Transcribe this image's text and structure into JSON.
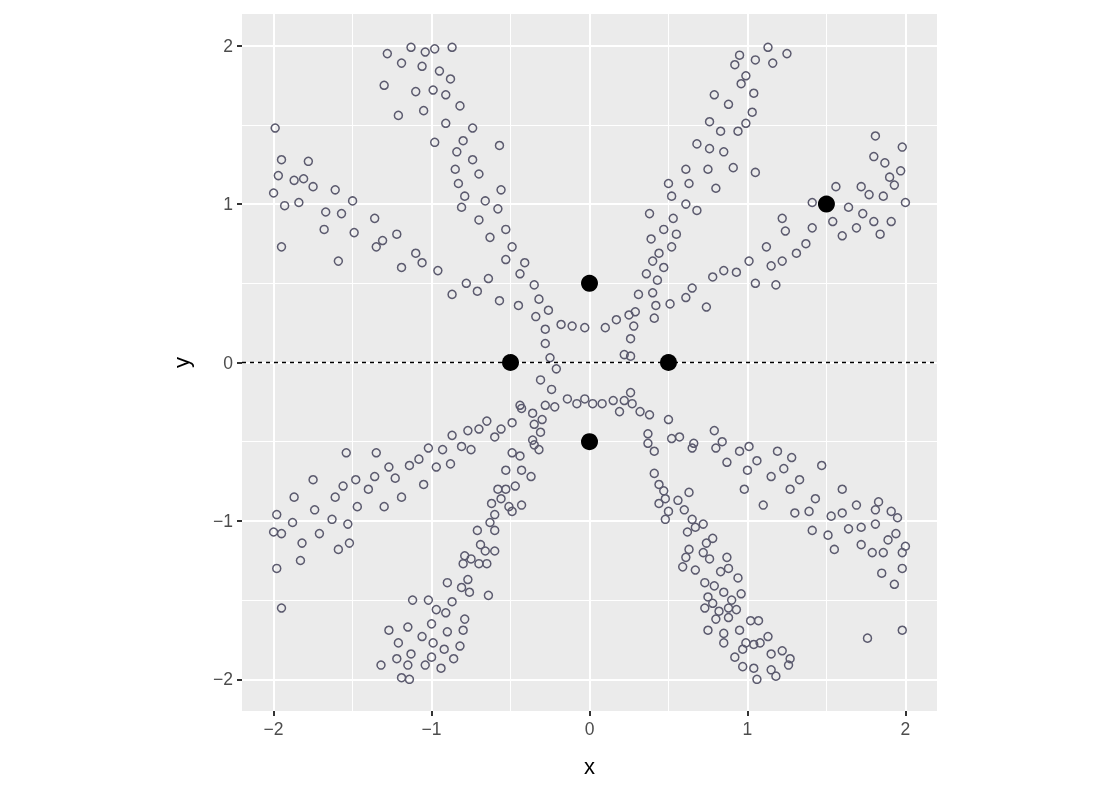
{
  "chart_data": {
    "type": "scatter",
    "xlabel": "x",
    "ylabel": "y",
    "xlim": [
      -2.2,
      2.2
    ],
    "ylim": [
      -2.2,
      2.2
    ],
    "xticks": [
      {
        "value": -2,
        "label": "−2"
      },
      {
        "value": -1,
        "label": "−1"
      },
      0,
      1,
      2
    ],
    "yticks": [
      {
        "value": -2,
        "label": "−2"
      },
      {
        "value": -1,
        "label": "−1"
      },
      0,
      1,
      2
    ],
    "grid": true,
    "marker": "circle",
    "ref_lines": [
      {
        "axis": "y",
        "value": 0,
        "color": "#000000",
        "line_style": "dashed"
      }
    ],
    "series": [
      {
        "color": "#5b5a6e",
        "x": [
          -1.99,
          -1.95,
          -1.78,
          -1.97,
          -2.0,
          -1.93,
          -1.87,
          -1.81,
          -1.75,
          -1.84,
          -1.67,
          -1.61,
          -1.68,
          -1.95,
          -1.57,
          -1.5,
          -1.49,
          -1.59,
          -1.36,
          -1.31,
          -1.35,
          -1.22,
          -1.19,
          -1.1,
          -1.06,
          -0.96,
          -0.87,
          -0.78,
          -0.71,
          -0.64,
          -0.57,
          -0.45,
          -0.34,
          -0.11,
          -0.03,
          -1.13,
          -1.04,
          -0.98,
          -0.87,
          -1.28,
          -1.19,
          -1.06,
          -0.95,
          -0.88,
          -1.3,
          -1.1,
          -0.99,
          -0.91,
          -0.82,
          -1.05,
          -1.21,
          -0.91,
          -0.74,
          -0.98,
          -0.8,
          -0.57,
          -0.84,
          -0.74,
          -0.85,
          -0.7,
          -0.83,
          -0.56,
          -0.79,
          -0.81,
          -0.66,
          -0.58,
          -0.7,
          -0.53,
          -0.63,
          -0.49,
          -0.53,
          -0.41,
          -0.44,
          -0.35,
          -0.32,
          -0.26,
          -0.28,
          -0.28,
          -0.25,
          -0.18,
          1.13,
          1.25,
          0.95,
          1.05,
          1.16,
          0.92,
          0.99,
          0.96,
          1.04,
          0.79,
          0.88,
          1.03,
          0.76,
          0.99,
          0.83,
          0.94,
          0.68,
          0.76,
          0.85,
          0.61,
          0.91,
          1.05,
          0.75,
          0.5,
          0.63,
          0.8,
          0.52,
          0.61,
          0.68,
          0.38,
          0.53,
          0.47,
          0.39,
          0.55,
          0.52,
          0.44,
          0.4,
          0.47,
          0.36,
          0.43,
          0.31,
          0.4,
          0.42,
          0.41,
          0.28,
          0.22,
          0.26,
          0.26,
          0.1,
          0.17,
          0.25,
          0.29,
          0.51,
          0.61,
          0.65,
          0.74,
          0.78,
          0.85,
          0.93,
          1.01,
          1.05,
          1.18,
          1.15,
          1.12,
          1.22,
          1.24,
          1.22,
          1.31,
          1.37,
          1.41,
          1.41,
          1.56,
          1.54,
          1.6,
          1.69,
          1.72,
          1.77,
          1.8,
          1.84,
          1.8,
          1.81,
          1.86,
          1.9,
          1.97,
          1.98,
          2.0,
          1.91,
          1.93,
          1.87,
          1.73,
          1.64,
          -2.0,
          -1.98,
          -1.95,
          -1.98,
          -1.95,
          -1.87,
          -1.82,
          -1.83,
          -1.88,
          -1.75,
          -1.74,
          -1.71,
          -1.61,
          -1.63,
          -1.54,
          -1.59,
          -1.52,
          -1.53,
          -1.47,
          -1.56,
          -1.48,
          -1.35,
          -1.4,
          -1.3,
          -1.36,
          -1.23,
          -1.19,
          -1.27,
          -1.14,
          -1.08,
          -1.05,
          -1.02,
          -0.97,
          -0.88,
          -0.93,
          -0.87,
          -0.81,
          -0.75,
          -0.77,
          -0.7,
          -0.65,
          -0.6,
          -0.56,
          -0.49,
          -0.44,
          -0.36,
          -0.28,
          -0.22,
          -0.14,
          -0.08,
          -0.03,
          -0.31,
          -0.24,
          -0.21,
          -1.19,
          -1.14,
          -1.32,
          -1.22,
          -1.15,
          -1.27,
          -1.21,
          -1.13,
          -1.15,
          -1.12,
          -1.04,
          -1.0,
          -0.94,
          -0.86,
          -1.06,
          -0.99,
          -0.92,
          -0.82,
          -1.02,
          -1.0,
          -0.9,
          -0.97,
          -0.91,
          -0.8,
          -0.79,
          -0.9,
          -0.87,
          -0.81,
          -0.77,
          -0.76,
          -0.64,
          -0.8,
          -0.79,
          -0.75,
          -0.7,
          -0.65,
          -0.66,
          -0.6,
          -0.71,
          -0.69,
          -0.6,
          -0.63,
          -0.6,
          -0.62,
          -0.56,
          -0.51,
          -0.53,
          -0.49,
          -0.43,
          -0.58,
          -0.53,
          -0.47,
          -0.43,
          -0.37,
          -0.49,
          -0.44,
          -0.36,
          -0.35,
          -0.32,
          -0.31,
          -0.43,
          -0.35,
          -0.3,
          0.02,
          0.08,
          0.15,
          0.22,
          0.26,
          0.19,
          0.27,
          0.32,
          0.38,
          0.5,
          0.52,
          0.57,
          0.66,
          0.65,
          0.79,
          0.8,
          0.84,
          0.87,
          0.95,
          1.01,
          0.98,
          1.0,
          1.06,
          1.1,
          1.15,
          1.19,
          1.23,
          1.28,
          1.3,
          1.33,
          1.27,
          1.39,
          1.41,
          1.43,
          1.47,
          1.51,
          1.55,
          1.53,
          1.6,
          1.6,
          1.64,
          1.69,
          1.72,
          1.72,
          1.79,
          1.76,
          1.81,
          1.81,
          1.83,
          1.85,
          1.86,
          1.91,
          1.95,
          1.89,
          1.94,
          1.98,
          2.0,
          1.98,
          1.93,
          1.98,
          0.37,
          0.37,
          0.41,
          0.41,
          0.44,
          0.47,
          0.48,
          0.44,
          0.5,
          0.48,
          0.56,
          0.63,
          0.6,
          0.65,
          0.72,
          0.62,
          0.67,
          0.78,
          0.74,
          0.63,
          0.61,
          0.59,
          0.72,
          0.76,
          0.87,
          0.67,
          0.83,
          0.88,
          0.73,
          0.79,
          0.94,
          0.96,
          0.85,
          0.75,
          0.78,
          0.9,
          0.73,
          0.82,
          0.88,
          0.93,
          0.8,
          0.88,
          0.75,
          0.85,
          0.95,
          1.02,
          1.07,
          0.85,
          0.99,
          0.92,
          0.97,
          1.04,
          1.08,
          1.13,
          0.97,
          1.04,
          1.06,
          1.15,
          1.18,
          1.15,
          1.22,
          1.26,
          1.27
        ],
        "values": [
          1.48,
          1.28,
          1.27,
          1.18,
          1.07,
          0.99,
          1.15,
          1.16,
          1.11,
          1.01,
          0.95,
          1.09,
          0.84,
          0.73,
          0.94,
          1.02,
          0.82,
          0.64,
          0.91,
          0.77,
          0.73,
          0.81,
          0.6,
          0.69,
          0.63,
          0.58,
          0.43,
          0.5,
          0.45,
          0.53,
          0.39,
          0.36,
          0.29,
          0.23,
          0.22,
          1.99,
          1.96,
          1.98,
          1.99,
          1.95,
          1.89,
          1.87,
          1.84,
          1.79,
          1.75,
          1.71,
          1.72,
          1.69,
          1.62,
          1.59,
          1.56,
          1.51,
          1.48,
          1.39,
          1.4,
          1.37,
          1.33,
          1.28,
          1.22,
          1.19,
          1.13,
          1.09,
          1.05,
          0.98,
          1.02,
          0.97,
          0.9,
          0.84,
          0.79,
          0.73,
          0.65,
          0.63,
          0.56,
          0.49,
          0.4,
          0.33,
          0.21,
          0.12,
          0.03,
          0.24,
          1.99,
          1.95,
          1.94,
          1.91,
          1.89,
          1.88,
          1.81,
          1.76,
          1.7,
          1.69,
          1.63,
          1.58,
          1.52,
          1.51,
          1.46,
          1.46,
          1.38,
          1.35,
          1.33,
          1.22,
          1.23,
          1.2,
          1.22,
          1.13,
          1.13,
          1.1,
          1.05,
          1.0,
          0.96,
          0.94,
          0.91,
          0.84,
          0.78,
          0.81,
          0.73,
          0.69,
          0.64,
          0.6,
          0.56,
          0.52,
          0.43,
          0.44,
          0.36,
          0.28,
          0.23,
          0.05,
          0.04,
          0.15,
          0.22,
          0.27,
          0.3,
          0.32,
          0.37,
          0.41,
          0.47,
          0.35,
          0.54,
          0.58,
          0.57,
          0.64,
          0.5,
          0.49,
          0.61,
          0.73,
          0.64,
          0.83,
          0.91,
          0.69,
          0.75,
          0.85,
          1.01,
          1.11,
          0.89,
          0.8,
          0.85,
          1.11,
          1.06,
          0.89,
          0.81,
          1.3,
          1.43,
          1.05,
          1.17,
          1.21,
          1.36,
          1.01,
          0.89,
          1.12,
          1.26,
          0.94,
          0.98,
          -1.07,
          -0.96,
          -1.08,
          -1.3,
          -1.55,
          -0.85,
          -1.14,
          -1.25,
          -1.01,
          -0.74,
          -0.93,
          -1.08,
          -0.85,
          -0.99,
          -0.57,
          -1.18,
          -1.14,
          -1.02,
          -0.91,
          -0.78,
          -0.74,
          -0.57,
          -0.8,
          -0.91,
          -0.72,
          -0.73,
          -0.85,
          -0.66,
          -0.65,
          -0.61,
          -0.77,
          -0.54,
          -0.66,
          -0.64,
          -0.55,
          -0.46,
          -0.53,
          -0.55,
          -0.43,
          -0.42,
          -0.37,
          -0.47,
          -0.42,
          -0.38,
          -0.27,
          -0.32,
          -0.27,
          -0.28,
          -0.23,
          -0.26,
          -0.23,
          -0.11,
          -0.17,
          -0.04,
          -1.99,
          -2.0,
          -1.91,
          -1.87,
          -1.91,
          -1.69,
          -1.77,
          -1.84,
          -1.67,
          -1.5,
          -1.91,
          -1.86,
          -1.93,
          -1.87,
          -1.73,
          -1.77,
          -1.81,
          -1.79,
          -1.5,
          -1.65,
          -1.7,
          -1.56,
          -1.58,
          -1.69,
          -1.62,
          -1.39,
          -1.51,
          -1.42,
          -1.37,
          -1.45,
          -1.47,
          -1.27,
          -1.22,
          -1.24,
          -1.27,
          -1.27,
          -1.19,
          -1.19,
          -1.06,
          -1.15,
          -1.06,
          -1.01,
          -0.96,
          -0.89,
          -0.86,
          -0.91,
          -0.8,
          -0.94,
          -0.9,
          -0.8,
          -0.68,
          -0.78,
          -0.68,
          -0.72,
          -0.57,
          -0.59,
          -0.49,
          -0.52,
          -0.55,
          -0.44,
          -0.29,
          -0.39,
          -0.36,
          -0.26,
          -0.26,
          -0.24,
          -0.24,
          -0.19,
          -0.31,
          -0.26,
          -0.31,
          -0.33,
          -0.36,
          -0.48,
          -0.47,
          -0.51,
          -0.54,
          -0.43,
          -0.54,
          -0.5,
          -0.63,
          -0.56,
          -0.53,
          -0.8,
          -0.68,
          -0.62,
          -0.9,
          -0.72,
          -0.56,
          -0.67,
          -0.6,
          -0.95,
          -0.74,
          -0.8,
          -0.94,
          -1.06,
          -0.86,
          -0.65,
          -1.09,
          -1.18,
          -0.97,
          -0.8,
          -0.95,
          -1.05,
          -0.9,
          -1.04,
          -1.15,
          -1.2,
          -1.74,
          -0.93,
          -1.02,
          -0.88,
          -1.33,
          -1.2,
          -0.94,
          -0.98,
          -1.12,
          -1.08,
          -1.2,
          -1.16,
          -1.3,
          -1.4,
          -1.69,
          -0.45,
          -0.51,
          -0.56,
          -0.7,
          -0.77,
          -0.81,
          -0.86,
          -0.89,
          -0.94,
          -0.99,
          -0.87,
          -0.82,
          -0.93,
          -0.99,
          -1.02,
          -1.07,
          -1.04,
          -1.11,
          -1.14,
          -1.18,
          -1.23,
          -1.29,
          -1.2,
          -1.24,
          -1.23,
          -1.31,
          -1.32,
          -1.3,
          -1.39,
          -1.41,
          -1.36,
          -1.46,
          -1.45,
          -1.48,
          -1.52,
          -1.5,
          -1.55,
          -1.57,
          -1.55,
          -1.56,
          -1.62,
          -1.61,
          -1.69,
          -1.71,
          -1.69,
          -1.63,
          -1.63,
          -1.77,
          -1.77,
          -1.86,
          -1.81,
          -1.78,
          -1.77,
          -1.73,
          -1.92,
          -1.93,
          -2.0,
          -1.94,
          -1.98,
          -1.84,
          -1.82,
          -1.91,
          -1.87
        ]
      },
      {
        "color": "#000000",
        "x": [
          0,
          -0.5,
          0.5,
          0,
          1.5
        ],
        "values": [
          0.5,
          0,
          0,
          -0.5,
          1
        ]
      }
    ]
  }
}
